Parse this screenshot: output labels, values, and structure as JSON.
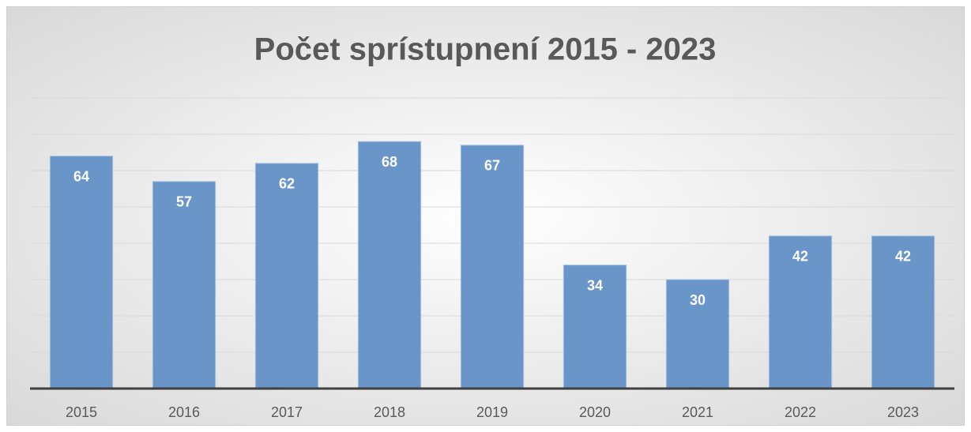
{
  "chart_data": {
    "type": "bar",
    "title": "Počet sprístupnení 2015 - 2023",
    "categories": [
      "2015",
      "2016",
      "2017",
      "2018",
      "2019",
      "2020",
      "2021",
      "2022",
      "2023"
    ],
    "values": [
      64,
      57,
      62,
      68,
      67,
      34,
      30,
      42,
      42
    ],
    "color": "#6a95c9",
    "ylim": [
      0,
      80
    ],
    "yticks": [
      0,
      10,
      20,
      30,
      40,
      50,
      60,
      70,
      80
    ],
    "grid": true
  }
}
